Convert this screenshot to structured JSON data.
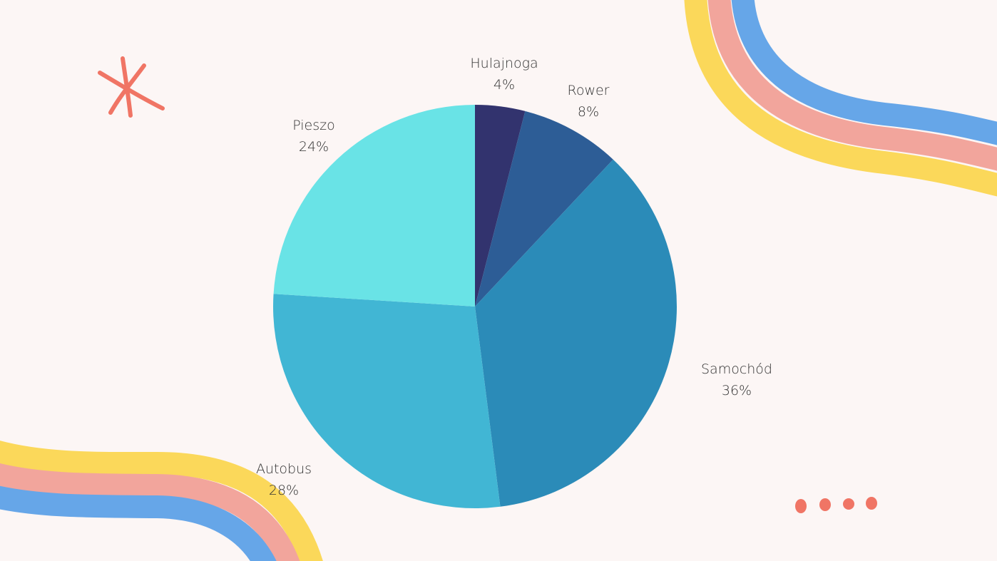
{
  "chart_data": {
    "type": "pie",
    "title": "",
    "start": "top",
    "direction": "clockwise",
    "slices": [
      {
        "label": "Hulajnoga",
        "value": 4,
        "display": "4%",
        "color": "#32336e"
      },
      {
        "label": "Rower",
        "value": 8,
        "display": "8%",
        "color": "#2d5d96"
      },
      {
        "label": "Samochód",
        "value": 36,
        "display": "36%",
        "color": "#2b8bb8"
      },
      {
        "label": "Autobus",
        "value": 28,
        "display": "28%",
        "color": "#41b6d4"
      },
      {
        "label": "Pieszo",
        "value": 24,
        "display": "24%",
        "color": "#69e3e6"
      }
    ]
  },
  "decor_colors": {
    "yellow": "#fbd85a",
    "pink": "#f2a59c",
    "blue": "#66a6e8",
    "coral": "#f07565",
    "background": "#fcf6f5"
  }
}
